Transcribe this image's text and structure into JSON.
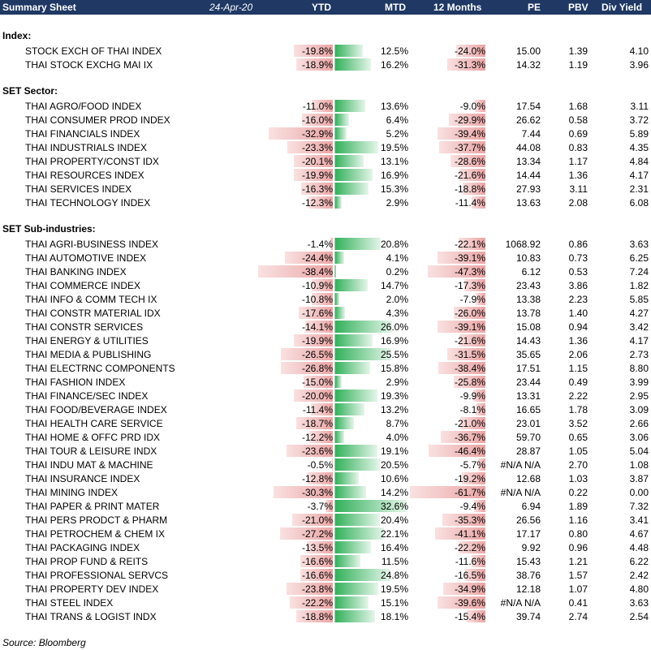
{
  "header": {
    "title": "Summary Sheet",
    "date": "24-Apr-20",
    "columns": [
      "YTD",
      "MTD",
      "12 Months",
      "PE",
      "PBV",
      "Div Yield"
    ]
  },
  "sections": [
    {
      "title": "Index:",
      "rows": [
        {
          "name": "STOCK EXCH OF THAI INDEX",
          "ytd": "-19.8%",
          "mtd": "12.5%",
          "m12": "-24.0%",
          "pe": "15.00",
          "pbv": "1.39",
          "dy": "4.10",
          "ytd_v": -19.8,
          "mtd_v": 12.5,
          "m12_v": -24.0
        },
        {
          "name": "THAI STOCK EXCHG MAI IX",
          "ytd": "-18.9%",
          "mtd": "16.2%",
          "m12": "-31.3%",
          "pe": "14.32",
          "pbv": "1.19",
          "dy": "3.96",
          "ytd_v": -18.9,
          "mtd_v": 16.2,
          "m12_v": -31.3
        }
      ]
    },
    {
      "title": "SET Sector:",
      "rows": [
        {
          "name": "THAI AGRO/FOOD INDEX",
          "ytd": "-11.0%",
          "mtd": "13.6%",
          "m12": "-9.0%",
          "pe": "17.54",
          "pbv": "1.68",
          "dy": "3.11",
          "ytd_v": -11.0,
          "mtd_v": 13.6,
          "m12_v": -9.0
        },
        {
          "name": "THAI CONSUMER PROD INDEX",
          "ytd": "-16.0%",
          "mtd": "6.4%",
          "m12": "-29.9%",
          "pe": "26.62",
          "pbv": "0.58",
          "dy": "3.72",
          "ytd_v": -16.0,
          "mtd_v": 6.4,
          "m12_v": -29.9
        },
        {
          "name": "THAI FINANCIALS INDEX",
          "ytd": "-32.9%",
          "mtd": "5.2%",
          "m12": "-39.4%",
          "pe": "7.44",
          "pbv": "0.69",
          "dy": "5.89",
          "ytd_v": -32.9,
          "mtd_v": 5.2,
          "m12_v": -39.4
        },
        {
          "name": "THAI INDUSTRIALS INDEX",
          "ytd": "-23.3%",
          "mtd": "19.5%",
          "m12": "-37.7%",
          "pe": "44.08",
          "pbv": "0.83",
          "dy": "4.35",
          "ytd_v": -23.3,
          "mtd_v": 19.5,
          "m12_v": -37.7
        },
        {
          "name": "THAI PROPERTY/CONST IDX",
          "ytd": "-20.1%",
          "mtd": "13.1%",
          "m12": "-28.6%",
          "pe": "13.34",
          "pbv": "1.17",
          "dy": "4.84",
          "ytd_v": -20.1,
          "mtd_v": 13.1,
          "m12_v": -28.6
        },
        {
          "name": "THAI RESOURCES INDEX",
          "ytd": "-19.9%",
          "mtd": "16.9%",
          "m12": "-21.6%",
          "pe": "14.44",
          "pbv": "1.36",
          "dy": "4.17",
          "ytd_v": -19.9,
          "mtd_v": 16.9,
          "m12_v": -21.6
        },
        {
          "name": "THAI SERVICES INDEX",
          "ytd": "-16.3%",
          "mtd": "15.3%",
          "m12": "-18.8%",
          "pe": "27.93",
          "pbv": "3.11",
          "dy": "2.31",
          "ytd_v": -16.3,
          "mtd_v": 15.3,
          "m12_v": -18.8
        },
        {
          "name": "THAI TECHNOLOGY INDEX",
          "ytd": "-12.3%",
          "mtd": "2.9%",
          "m12": "-11.4%",
          "pe": "13.63",
          "pbv": "2.08",
          "dy": "6.08",
          "ytd_v": -12.3,
          "mtd_v": 2.9,
          "m12_v": -11.4
        }
      ]
    },
    {
      "title": "SET Sub-industries:",
      "rows": [
        {
          "name": "THAI AGRI-BUSINESS INDEX",
          "ytd": "-1.4%",
          "mtd": "20.8%",
          "m12": "-22.1%",
          "pe": "1068.92",
          "pbv": "0.86",
          "dy": "3.63",
          "ytd_v": -1.4,
          "mtd_v": 20.8,
          "m12_v": -22.1
        },
        {
          "name": "THAI AUTOMOTIVE INDEX",
          "ytd": "-24.4%",
          "mtd": "4.1%",
          "m12": "-39.1%",
          "pe": "10.83",
          "pbv": "0.73",
          "dy": "6.25",
          "ytd_v": -24.4,
          "mtd_v": 4.1,
          "m12_v": -39.1
        },
        {
          "name": "THAI BANKING INDEX",
          "ytd": "-38.4%",
          "mtd": "0.2%",
          "m12": "-47.3%",
          "pe": "6.12",
          "pbv": "0.53",
          "dy": "7.24",
          "ytd_v": -38.4,
          "mtd_v": 0.2,
          "m12_v": -47.3
        },
        {
          "name": "THAI COMMERCE INDEX",
          "ytd": "-10.9%",
          "mtd": "14.7%",
          "m12": "-17.3%",
          "pe": "23.43",
          "pbv": "3.86",
          "dy": "1.82",
          "ytd_v": -10.9,
          "mtd_v": 14.7,
          "m12_v": -17.3
        },
        {
          "name": "THAI INFO & COMM TECH IX",
          "ytd": "-10.8%",
          "mtd": "2.0%",
          "m12": "-7.9%",
          "pe": "13.38",
          "pbv": "2.23",
          "dy": "5.85",
          "ytd_v": -10.8,
          "mtd_v": 2.0,
          "m12_v": -7.9
        },
        {
          "name": "THAI CONSTR MATERIAL IDX",
          "ytd": "-17.6%",
          "mtd": "4.3%",
          "m12": "-26.0%",
          "pe": "13.78",
          "pbv": "1.40",
          "dy": "4.27",
          "ytd_v": -17.6,
          "mtd_v": 4.3,
          "m12_v": -26.0
        },
        {
          "name": "THAI CONSTR SERVICES",
          "ytd": "-14.1%",
          "mtd": "26.0%",
          "m12": "-39.1%",
          "pe": "15.08",
          "pbv": "0.94",
          "dy": "3.42",
          "ytd_v": -14.1,
          "mtd_v": 26.0,
          "m12_v": -39.1
        },
        {
          "name": "THAI ENERGY & UTILITIES",
          "ytd": "-19.9%",
          "mtd": "16.9%",
          "m12": "-21.6%",
          "pe": "14.43",
          "pbv": "1.36",
          "dy": "4.17",
          "ytd_v": -19.9,
          "mtd_v": 16.9,
          "m12_v": -21.6
        },
        {
          "name": "THAI MEDIA & PUBLISHING",
          "ytd": "-26.5%",
          "mtd": "25.5%",
          "m12": "-31.5%",
          "pe": "35.65",
          "pbv": "2.06",
          "dy": "2.73",
          "ytd_v": -26.5,
          "mtd_v": 25.5,
          "m12_v": -31.5
        },
        {
          "name": "THAI ELECTRNC COMPONENTS",
          "ytd": "-26.8%",
          "mtd": "15.8%",
          "m12": "-38.4%",
          "pe": "17.51",
          "pbv": "1.15",
          "dy": "8.80",
          "ytd_v": -26.8,
          "mtd_v": 15.8,
          "m12_v": -38.4
        },
        {
          "name": "THAI FASHION INDEX",
          "ytd": "-15.0%",
          "mtd": "2.9%",
          "m12": "-25.8%",
          "pe": "23.44",
          "pbv": "0.49",
          "dy": "3.99",
          "ytd_v": -15.0,
          "mtd_v": 2.9,
          "m12_v": -25.8
        },
        {
          "name": "THAI FINANCE/SEC INDEX",
          "ytd": "-20.0%",
          "mtd": "19.3%",
          "m12": "-9.9%",
          "pe": "13.31",
          "pbv": "2.22",
          "dy": "2.95",
          "ytd_v": -20.0,
          "mtd_v": 19.3,
          "m12_v": -9.9
        },
        {
          "name": "THAI FOOD/BEVERAGE INDEX",
          "ytd": "-11.4%",
          "mtd": "13.2%",
          "m12": "-8.1%",
          "pe": "16.65",
          "pbv": "1.78",
          "dy": "3.09",
          "ytd_v": -11.4,
          "mtd_v": 13.2,
          "m12_v": -8.1
        },
        {
          "name": "THAI HEALTH CARE SERVICE",
          "ytd": "-18.7%",
          "mtd": "8.7%",
          "m12": "-21.0%",
          "pe": "23.01",
          "pbv": "3.52",
          "dy": "2.66",
          "ytd_v": -18.7,
          "mtd_v": 8.7,
          "m12_v": -21.0
        },
        {
          "name": "THAI HOME & OFFC PRD IDX",
          "ytd": "-12.2%",
          "mtd": "4.0%",
          "m12": "-36.7%",
          "pe": "59.70",
          "pbv": "0.65",
          "dy": "3.06",
          "ytd_v": -12.2,
          "mtd_v": 4.0,
          "m12_v": -36.7
        },
        {
          "name": "THAI TOUR & LEISURE INDX",
          "ytd": "-23.6%",
          "mtd": "19.1%",
          "m12": "-46.4%",
          "pe": "28.87",
          "pbv": "1.05",
          "dy": "5.04",
          "ytd_v": -23.6,
          "mtd_v": 19.1,
          "m12_v": -46.4
        },
        {
          "name": "THAI INDU MAT & MACHINE",
          "ytd": "-0.5%",
          "mtd": "20.5%",
          "m12": "-5.7%",
          "pe": "#N/A N/A",
          "pbv": "2.70",
          "dy": "1.08",
          "ytd_v": -0.5,
          "mtd_v": 20.5,
          "m12_v": -5.7
        },
        {
          "name": "THAI INSURANCE INDEX",
          "ytd": "-12.8%",
          "mtd": "10.6%",
          "m12": "-19.2%",
          "pe": "12.68",
          "pbv": "1.03",
          "dy": "3.87",
          "ytd_v": -12.8,
          "mtd_v": 10.6,
          "m12_v": -19.2
        },
        {
          "name": "THAI MINING INDEX",
          "ytd": "-30.3%",
          "mtd": "14.2%",
          "m12": "-61.7%",
          "pe": "#N/A N/A",
          "pbv": "0.22",
          "dy": "0.00",
          "ytd_v": -30.3,
          "mtd_v": 14.2,
          "m12_v": -61.7
        },
        {
          "name": "THAI PAPER & PRINT MATER",
          "ytd": "-3.7%",
          "mtd": "32.6%",
          "m12": "-9.4%",
          "pe": "6.94",
          "pbv": "1.89",
          "dy": "7.32",
          "ytd_v": -3.7,
          "mtd_v": 32.6,
          "m12_v": -9.4
        },
        {
          "name": "THAI PERS PRODCT & PHARM",
          "ytd": "-21.0%",
          "mtd": "20.4%",
          "m12": "-35.3%",
          "pe": "26.56",
          "pbv": "1.16",
          "dy": "3.41",
          "ytd_v": -21.0,
          "mtd_v": 20.4,
          "m12_v": -35.3
        },
        {
          "name": "THAI PETROCHEM & CHEM IX",
          "ytd": "-27.2%",
          "mtd": "22.1%",
          "m12": "-41.1%",
          "pe": "17.17",
          "pbv": "0.80",
          "dy": "4.67",
          "ytd_v": -27.2,
          "mtd_v": 22.1,
          "m12_v": -41.1
        },
        {
          "name": "THAI PACKAGING INDEX",
          "ytd": "-13.5%",
          "mtd": "16.4%",
          "m12": "-22.2%",
          "pe": "9.92",
          "pbv": "0.96",
          "dy": "4.48",
          "ytd_v": -13.5,
          "mtd_v": 16.4,
          "m12_v": -22.2
        },
        {
          "name": "THAI PROP FUND & REITS",
          "ytd": "-16.6%",
          "mtd": "11.5%",
          "m12": "-11.6%",
          "pe": "15.43",
          "pbv": "1.21",
          "dy": "6.22",
          "ytd_v": -16.6,
          "mtd_v": 11.5,
          "m12_v": -11.6
        },
        {
          "name": "THAI PROFESSIONAL SERVCS",
          "ytd": "-16.6%",
          "mtd": "24.8%",
          "m12": "-16.5%",
          "pe": "38.76",
          "pbv": "1.57",
          "dy": "2.42",
          "ytd_v": -16.6,
          "mtd_v": 24.8,
          "m12_v": -16.5
        },
        {
          "name": "THAI PROPERTY DEV INDEX",
          "ytd": "-23.8%",
          "mtd": "19.5%",
          "m12": "-34.9%",
          "pe": "12.18",
          "pbv": "1.07",
          "dy": "4.80",
          "ytd_v": -23.8,
          "mtd_v": 19.5,
          "m12_v": -34.9
        },
        {
          "name": "THAI STEEL INDEX",
          "ytd": "-22.2%",
          "mtd": "15.1%",
          "m12": "-39.6%",
          "pe": "#N/A N/A",
          "pbv": "0.41",
          "dy": "3.63",
          "ytd_v": -22.2,
          "mtd_v": 15.1,
          "m12_v": -39.6
        },
        {
          "name": "THAI TRANS & LOGIST INDX",
          "ytd": "-18.8%",
          "mtd": "18.1%",
          "m12": "-15.4%",
          "pe": "39.74",
          "pbv": "2.74",
          "dy": "2.54",
          "ytd_v": -18.8,
          "mtd_v": 18.1,
          "m12_v": -15.4
        }
      ]
    }
  ],
  "footer": {
    "source": "Source: Bloomberg"
  },
  "colors": {
    "header_bg": "#1f3864",
    "negative_bar": "#eba5a5",
    "positive_bar": "#33b15b"
  }
}
